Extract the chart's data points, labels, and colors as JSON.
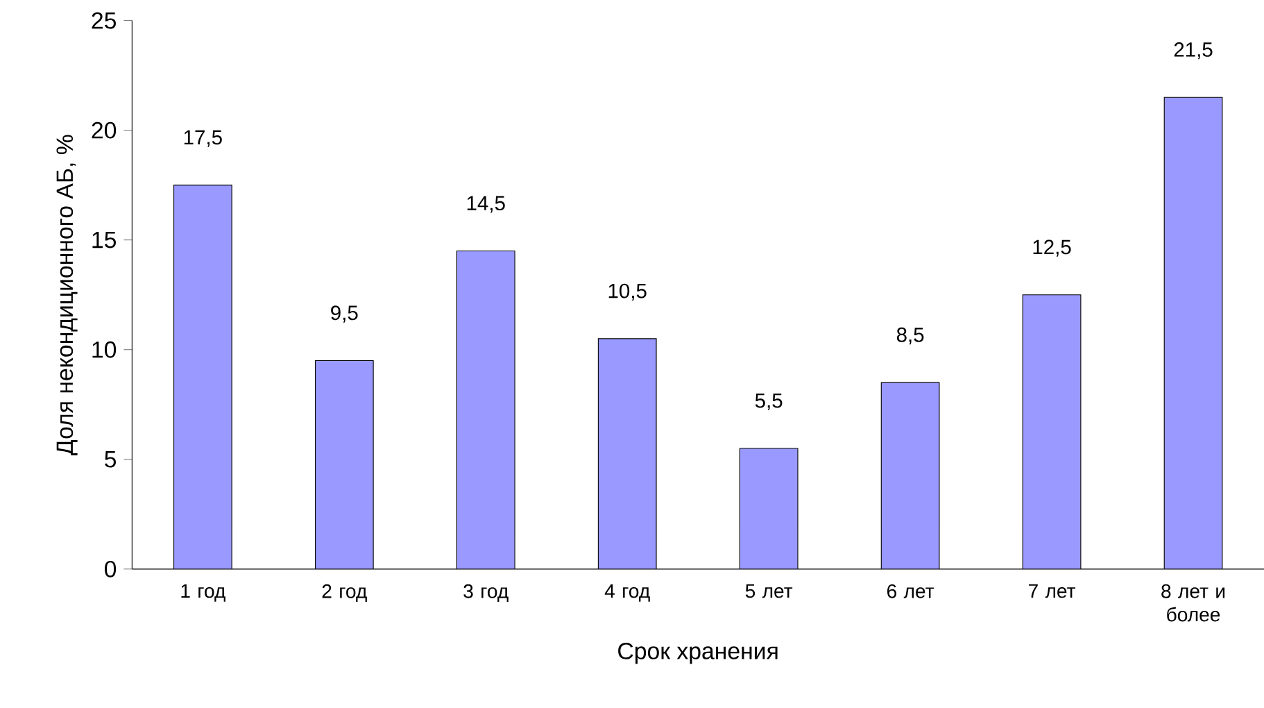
{
  "chart_data": {
    "type": "bar",
    "xlabel": "Срок хранения",
    "ylabel": "Доля некондиционного АБ, %",
    "categories": [
      "1 год",
      "2 год",
      "3 год",
      "4 год",
      "5 лет",
      "6 лет",
      "7 лет",
      "8 лет и более"
    ],
    "values": [
      17.5,
      9.5,
      14.5,
      10.5,
      5.5,
      8.5,
      12.5,
      21.5
    ],
    "value_labels": [
      "17,5",
      "9,5",
      "14,5",
      "10,5",
      "5,5",
      "8,5",
      "12,5",
      "21,5"
    ],
    "color": "#9999ff",
    "ylim": [
      0,
      25
    ],
    "yticks": [
      0,
      5,
      10,
      15,
      20,
      25
    ]
  }
}
